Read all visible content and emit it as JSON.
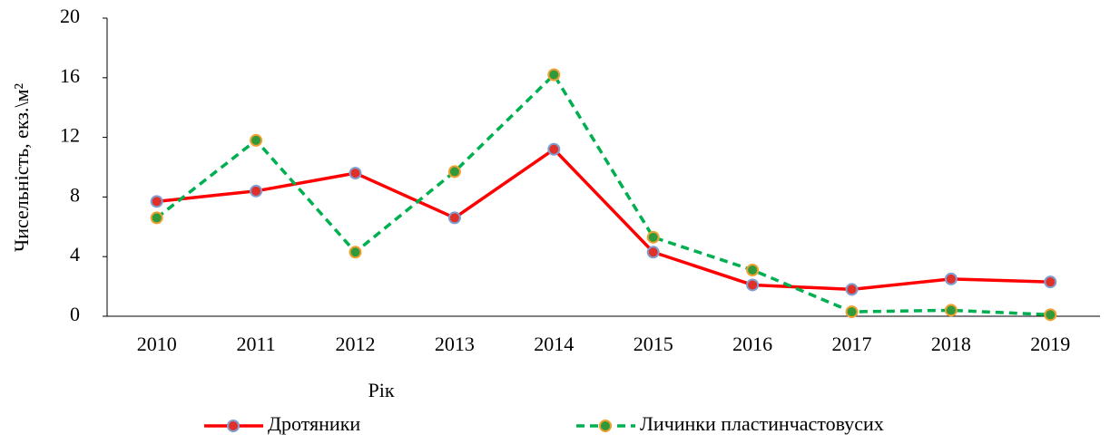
{
  "chart_data": {
    "type": "line",
    "x_label": "Рік",
    "y_label": "Чисельність, екз.\\м²",
    "categories": [
      "2010",
      "2011",
      "2012",
      "2013",
      "2014",
      "2015",
      "2016",
      "2017",
      "2018",
      "2019"
    ],
    "series": [
      {
        "name": "Дротяники",
        "color": "#ff0000",
        "marker_color": "#e0302a",
        "marker_edge_color": "#7f9fd0",
        "dash": "solid",
        "values": [
          7.7,
          8.4,
          9.6,
          6.6,
          11.2,
          4.3,
          2.1,
          1.8,
          2.5,
          2.3
        ]
      },
      {
        "name": "Личинки пластинчастовусих",
        "color": "#00b050",
        "marker_color": "#2e9a3c",
        "marker_edge_color": "#f0a030",
        "dash": "dashed",
        "values": [
          6.6,
          11.8,
          4.3,
          9.7,
          16.2,
          5.3,
          3.1,
          0.3,
          0.4,
          0.1
        ]
      }
    ],
    "ylim": [
      0,
      20
    ],
    "yticks": [
      0,
      4,
      8,
      12,
      16,
      20
    ],
    "grid": false,
    "legend": "bottom"
  }
}
